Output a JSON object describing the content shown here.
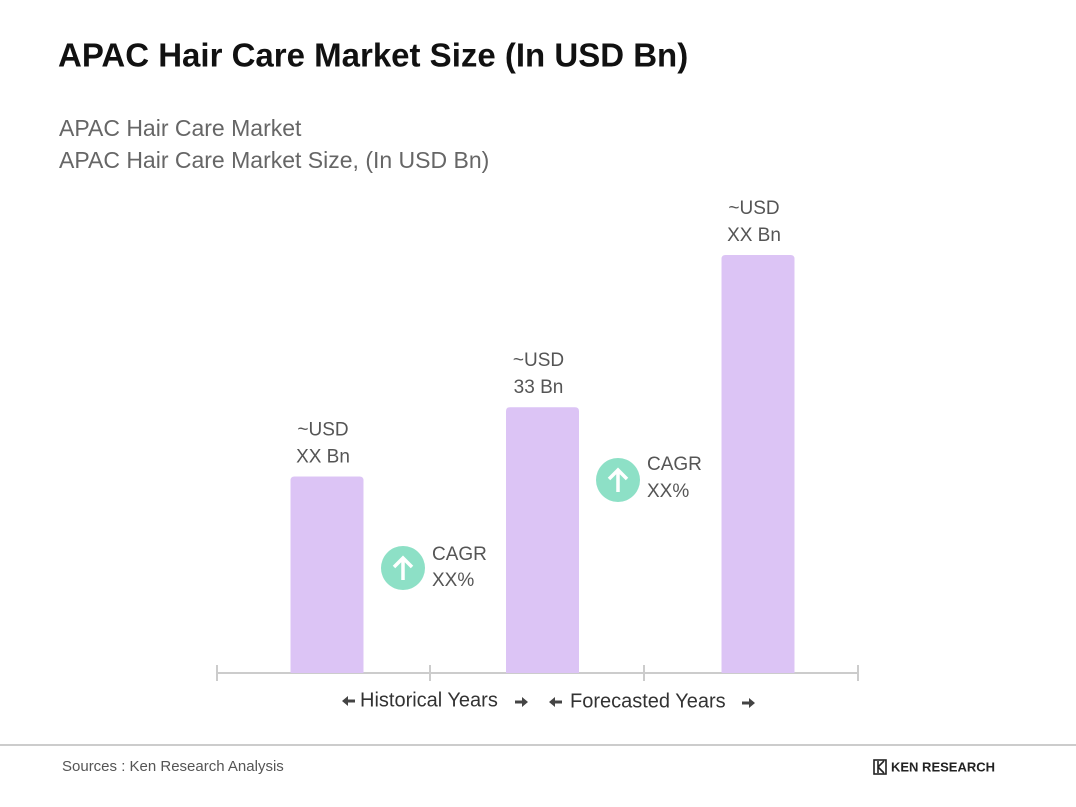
{
  "chart_data": {
    "type": "bar",
    "title": "APAC Hair Care Market Size (In USD Bn)",
    "subtitle": [
      "APAC Hair Care Market",
      "APAC Hair Care Market Size, (In USD Bn)"
    ],
    "categories": [
      null,
      null,
      null
    ],
    "values": [
      24.4,
      33,
      51.9
    ],
    "value_labels": [
      [
        "~USD",
        "XX Bn"
      ],
      [
        "~USD",
        "33 Bn"
      ],
      [
        "~USD",
        "XX Bn"
      ]
    ],
    "color": "#dcc4f5",
    "annotations": [
      [
        "CAGR",
        "XX%"
      ],
      [
        "CAGR",
        "XX%"
      ]
    ],
    "period_labels": [
      "Historical Years",
      "Forecasted Years"
    ],
    "source": "Sources : Ken Research Analysis",
    "brand": "KEN RESEARCH"
  }
}
